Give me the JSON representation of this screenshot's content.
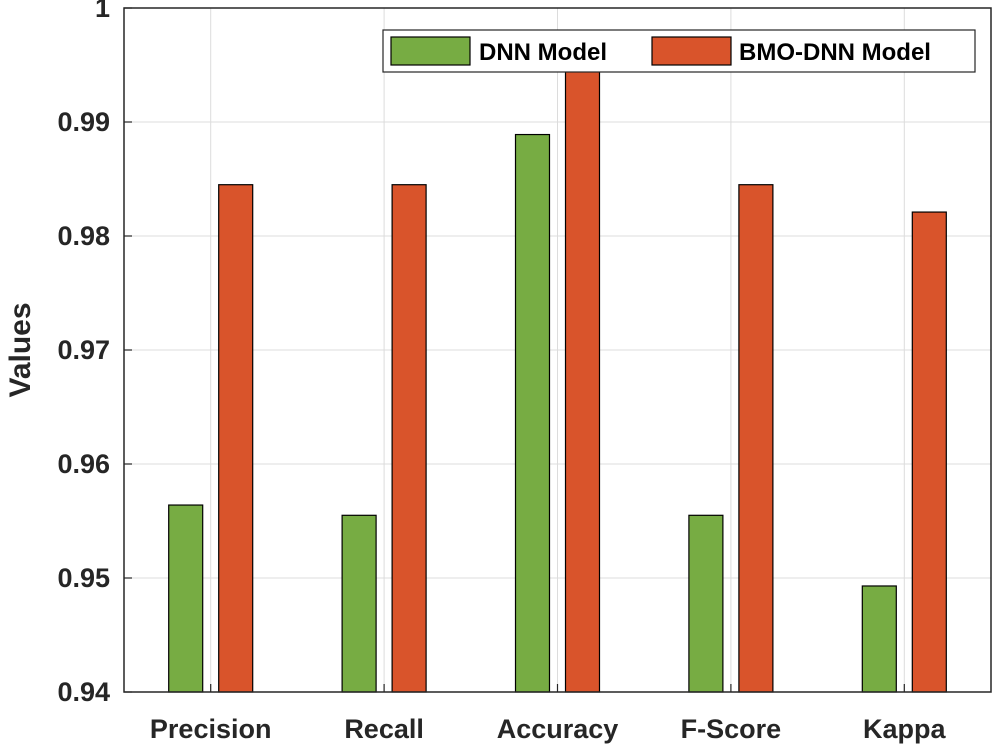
{
  "chart_data": {
    "type": "bar",
    "categories": [
      "Precision",
      "Recall",
      "Accuracy",
      "F-Score",
      "Kappa"
    ],
    "series": [
      {
        "name": "DNN Model",
        "color": "#77ac43",
        "values": [
          0.9564,
          0.9555,
          0.9889,
          0.9555,
          0.9493
        ]
      },
      {
        "name": "BMO-DNN Model",
        "color": "#d9542b",
        "values": [
          0.9845,
          0.9845,
          0.9962,
          0.9845,
          0.9821
        ]
      }
    ],
    "ylabel": "Values",
    "ylim": [
      0.94,
      1.0
    ],
    "yticks": [
      "0.94",
      "0.95",
      "0.96",
      "0.97",
      "0.98",
      "0.99",
      "1"
    ],
    "grid": true,
    "legend_position": "top-right"
  }
}
